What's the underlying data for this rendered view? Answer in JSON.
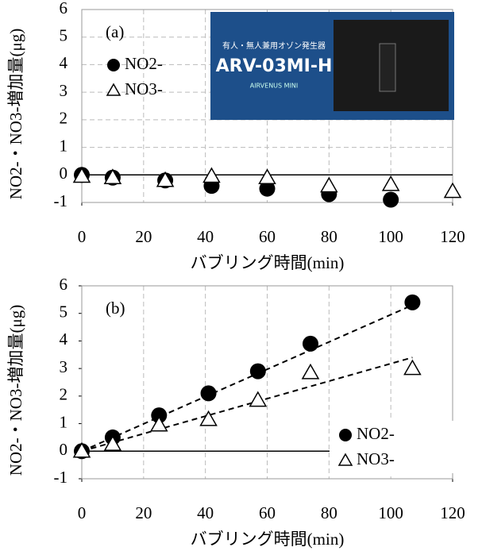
{
  "chart_data": [
    {
      "type": "scatter",
      "panel_label": "(a)",
      "x_label": "バブリング時間(min)",
      "y_label": "NO2-・NO3-増加量(μg)",
      "xlim": [
        0,
        120
      ],
      "xticks": [
        0,
        20,
        40,
        60,
        80,
        100,
        120
      ],
      "ylim": [
        -1,
        6
      ],
      "yticks": [
        -1,
        0,
        1,
        2,
        3,
        4,
        5,
        6
      ],
      "grid": "both",
      "legend": "upper-left",
      "series": [
        {
          "name": "NO2-",
          "marker": "circle",
          "color": "#000000",
          "x": [
            0,
            10,
            27,
            42,
            60,
            80,
            100
          ],
          "values": [
            0,
            -0.1,
            -0.2,
            -0.4,
            -0.5,
            -0.7,
            -0.9
          ]
        },
        {
          "name": "NO3-",
          "marker": "triangle",
          "color": "#000000",
          "x": [
            0,
            10,
            27,
            42,
            60,
            80,
            100,
            120
          ],
          "values": [
            -0.05,
            -0.1,
            -0.2,
            -0.05,
            -0.1,
            -0.4,
            -0.35,
            -0.6
          ]
        }
      ],
      "inset_texts": [
        "有人・無人兼用オゾン発生器",
        "ARV-03MI-H",
        "AIRVENUS MINI"
      ]
    },
    {
      "type": "scatter",
      "panel_label": "(b)",
      "x_label": "バブリング時間(min)",
      "y_label": "NO2-・NO3-増加量(μg)",
      "xlim": [
        0,
        120
      ],
      "xticks": [
        0,
        20,
        40,
        60,
        80,
        100,
        120
      ],
      "ylim": [
        -1,
        6
      ],
      "yticks": [
        -1,
        0,
        1,
        2,
        3,
        4,
        5,
        6
      ],
      "grid": "x",
      "legend": "lower-right",
      "series": [
        {
          "name": "NO2-",
          "marker": "circle",
          "color": "#000000",
          "x": [
            0,
            10,
            25,
            41,
            57,
            74,
            107
          ],
          "values": [
            0,
            0.5,
            1.3,
            2.1,
            2.9,
            3.9,
            5.4
          ],
          "trendline": {
            "x": [
              0,
              107
            ],
            "values": [
              0,
              5.3
            ]
          }
        },
        {
          "name": "NO3-",
          "marker": "triangle",
          "color": "#000000",
          "x": [
            0,
            10,
            25,
            41,
            57,
            74,
            107
          ],
          "values": [
            0,
            0.25,
            0.95,
            1.15,
            1.85,
            2.85,
            3.0
          ],
          "trendline": {
            "x": [
              0,
              107
            ],
            "values": [
              0,
              3.4
            ]
          }
        }
      ]
    }
  ]
}
